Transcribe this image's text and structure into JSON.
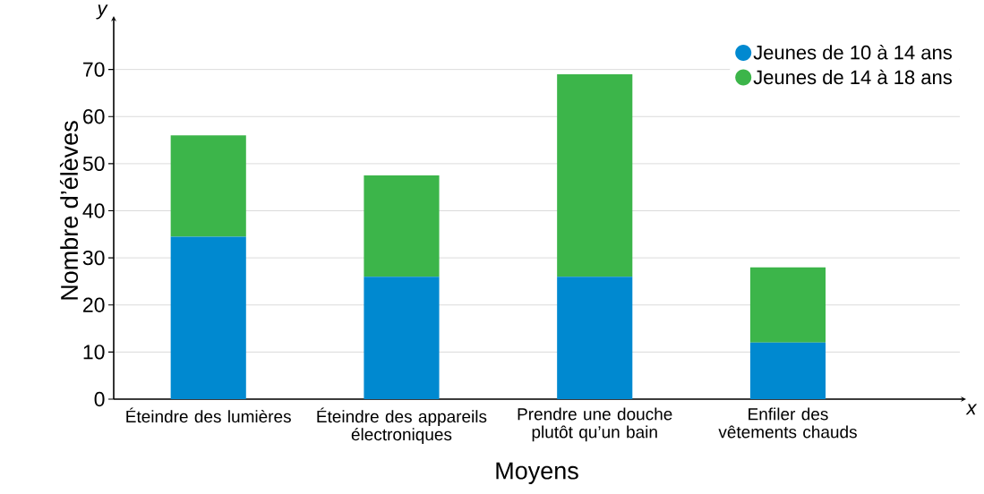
{
  "chart_data": {
    "type": "bar",
    "stacked": true,
    "xlabel": "Moyens",
    "ylabel": "Nombre d’élèves",
    "annotations": [
      "y",
      "x"
    ],
    "categories": [
      "Éteindre des lumières",
      "Éteindre des appareils électroniques",
      "Prendre une douche plutôt qu’un bain",
      "Enfiler des vêtements chauds"
    ],
    "series": [
      {
        "name": "Jeunes de 10 à 14 ans",
        "color": "#0089d0",
        "values": [
          34.5,
          26,
          26,
          12
        ]
      },
      {
        "name": "Jeunes de 14 à 18 ans",
        "color": "#3cb54a",
        "values": [
          21.5,
          21.5,
          43,
          16
        ]
      }
    ],
    "ylim": [
      0,
      80
    ],
    "yticks": [
      0,
      10,
      20,
      30,
      40,
      50,
      60,
      70
    ],
    "grid": "y",
    "legend": "top right"
  }
}
